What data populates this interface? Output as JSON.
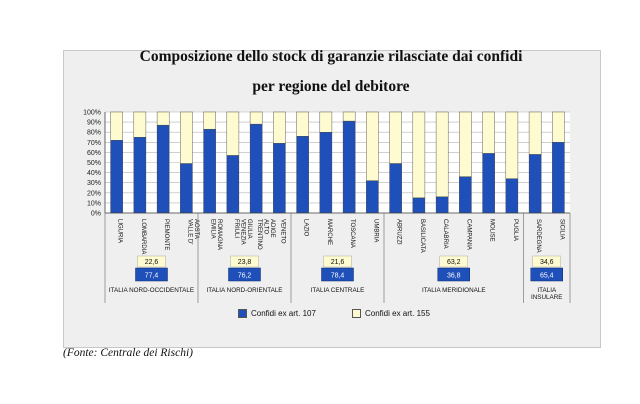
{
  "chart_data": {
    "type": "bar",
    "stacked": true,
    "percent": true,
    "title": "Composizione dello stock di garanzie rilasciate dai confidi",
    "subtitle": "per regione del debitore",
    "ylim": [
      0,
      100
    ],
    "yticks": [
      "0%",
      "10%",
      "20%",
      "30%",
      "40%",
      "50%",
      "60%",
      "70%",
      "80%",
      "90%",
      "100%"
    ],
    "categories": [
      "LIGURIA",
      "LOMBARDIA",
      "PIEMONTE",
      "VALLE D' AOSTA",
      "EMILIA ROMAGNA",
      "FRIULI VENEZIA GIULIA",
      "TRENTINO ALTO ADIGE",
      "VENETO",
      "LAZIO",
      "MARCHE",
      "TOSCANA",
      "UMBRIA",
      "ABRUZZI",
      "BASILICATA",
      "CALABRIA",
      "CAMPANIA",
      "MOLISE",
      "PUGLIA",
      "SARDEGNA",
      "SICILIA"
    ],
    "series": [
      {
        "name": "Confidi ex art. 107",
        "color": "#1f4fb8",
        "values": [
          72,
          75,
          87,
          49,
          83,
          57,
          88,
          69,
          76,
          80,
          91,
          32,
          49,
          15,
          16,
          36,
          59,
          34,
          58,
          70
        ]
      },
      {
        "name": "Confidi ex art. 155",
        "color": "#fdfbcf",
        "values": [
          28,
          25,
          13,
          51,
          17,
          43,
          12,
          31,
          24,
          20,
          9,
          68,
          51,
          85,
          84,
          64,
          41,
          66,
          42,
          30
        ]
      }
    ],
    "macro_areas": [
      {
        "name": "ITALIA NORD-OCCIDENTALE",
        "share_155": "22,6",
        "share_107": "77,4",
        "first": 0,
        "last": 3
      },
      {
        "name": "ITALIA NORD-ORIENTALE",
        "share_155": "23,8",
        "share_107": "76,2",
        "first": 4,
        "last": 7
      },
      {
        "name": "ITALIA CENTRALE",
        "share_155": "21,6",
        "share_107": "78,4",
        "first": 8,
        "last": 11
      },
      {
        "name": "ITALIA MERIDIONALE",
        "share_155": "63,2",
        "share_107": "36,8",
        "first": 12,
        "last": 17
      },
      {
        "name": "ITALIA INSULARE",
        "share_155": "34,6",
        "share_107": "65,4",
        "first": 18,
        "last": 19
      }
    ],
    "grid": true,
    "legend_position": "bottom"
  },
  "legend": {
    "s107": "Confidi ex art. 107",
    "s155": "Confidi ex art. 155"
  },
  "source": "(Fonte: Centrale dei Rischi)"
}
